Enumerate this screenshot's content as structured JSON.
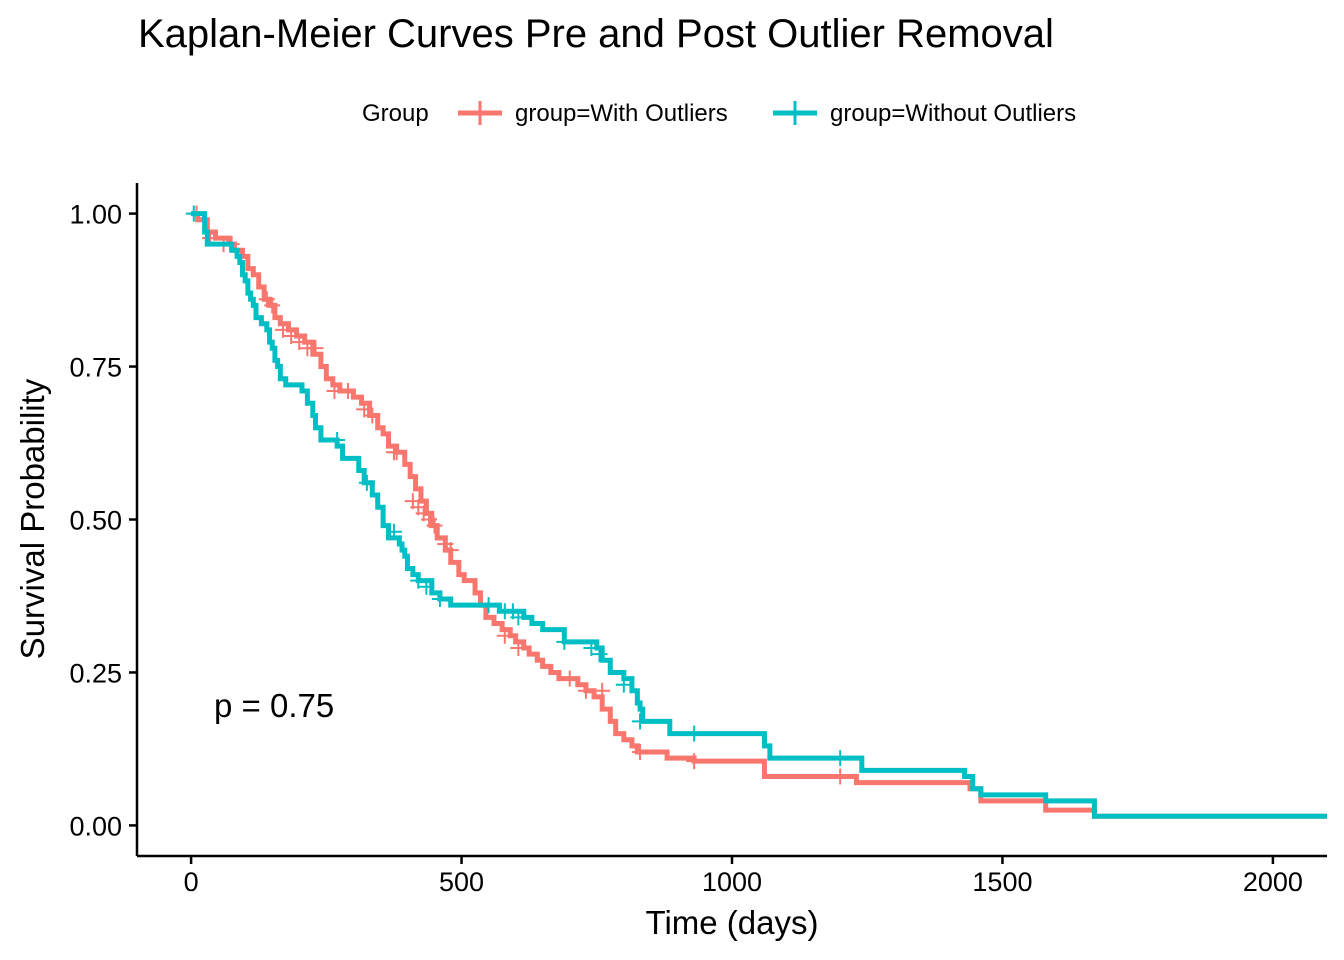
{
  "title": "Kaplan-Meier Curves Pre and Post Outlier Removal",
  "legend": {
    "title": "Group",
    "position": "top"
  },
  "annotation": "p = 0.75",
  "chart_data": {
    "type": "line",
    "title": "Kaplan-Meier Curves Pre and Post Outlier Removal",
    "xlabel": "Time (days)",
    "ylabel": "Survival Probability",
    "xlim": [
      -100,
      2100
    ],
    "ylim": [
      -0.05,
      1.05
    ],
    "x_ticks": [
      0,
      500,
      1000,
      1500,
      2000
    ],
    "x_tick_labels": [
      "0",
      "500",
      "1000",
      "1500",
      "2000"
    ],
    "y_ticks": [
      0,
      0.25,
      0.5,
      0.75,
      1
    ],
    "y_tick_labels": [
      "0.00",
      "0.25",
      "0.50",
      "0.75",
      "1.00"
    ],
    "grid": false,
    "step": true,
    "series": [
      {
        "name": "group=With Outliers",
        "color": "#F8766D",
        "points": [
          [
            0,
            1.0
          ],
          [
            12,
            0.99
          ],
          [
            30,
            0.97
          ],
          [
            45,
            0.96
          ],
          [
            70,
            0.95
          ],
          [
            80,
            0.94
          ],
          [
            95,
            0.93
          ],
          [
            105,
            0.91
          ],
          [
            115,
            0.9
          ],
          [
            125,
            0.88
          ],
          [
            135,
            0.86
          ],
          [
            145,
            0.85
          ],
          [
            155,
            0.83
          ],
          [
            165,
            0.82
          ],
          [
            180,
            0.81
          ],
          [
            195,
            0.8
          ],
          [
            210,
            0.79
          ],
          [
            225,
            0.77
          ],
          [
            240,
            0.75
          ],
          [
            250,
            0.73
          ],
          [
            262,
            0.72
          ],
          [
            275,
            0.71
          ],
          [
            300,
            0.7
          ],
          [
            315,
            0.69
          ],
          [
            330,
            0.67
          ],
          [
            345,
            0.65
          ],
          [
            355,
            0.64
          ],
          [
            365,
            0.62
          ],
          [
            380,
            0.61
          ],
          [
            395,
            0.59
          ],
          [
            405,
            0.57
          ],
          [
            415,
            0.55
          ],
          [
            425,
            0.53
          ],
          [
            435,
            0.51
          ],
          [
            445,
            0.49
          ],
          [
            455,
            0.47
          ],
          [
            470,
            0.45
          ],
          [
            480,
            0.43
          ],
          [
            495,
            0.41
          ],
          [
            505,
            0.4
          ],
          [
            525,
            0.38
          ],
          [
            535,
            0.36
          ],
          [
            545,
            0.34
          ],
          [
            560,
            0.33
          ],
          [
            575,
            0.32
          ],
          [
            590,
            0.31
          ],
          [
            600,
            0.3
          ],
          [
            615,
            0.29
          ],
          [
            625,
            0.28
          ],
          [
            640,
            0.27
          ],
          [
            650,
            0.26
          ],
          [
            665,
            0.25
          ],
          [
            680,
            0.24
          ],
          [
            715,
            0.23
          ],
          [
            730,
            0.22
          ],
          [
            745,
            0.21
          ],
          [
            760,
            0.19
          ],
          [
            775,
            0.17
          ],
          [
            785,
            0.15
          ],
          [
            800,
            0.14
          ],
          [
            815,
            0.13
          ],
          [
            825,
            0.12
          ],
          [
            880,
            0.11
          ],
          [
            930,
            0.105
          ],
          [
            1060,
            0.08
          ],
          [
            1230,
            0.07
          ],
          [
            1440,
            0.06
          ],
          [
            1460,
            0.04
          ],
          [
            1580,
            0.025
          ],
          [
            1670,
            0.015
          ],
          [
            2100,
            0.015
          ]
        ],
        "censored": [
          [
            10,
            1.0
          ],
          [
            35,
            0.96
          ],
          [
            60,
            0.95
          ],
          [
            75,
            0.95
          ],
          [
            140,
            0.86
          ],
          [
            150,
            0.85
          ],
          [
            170,
            0.81
          ],
          [
            185,
            0.8
          ],
          [
            200,
            0.79
          ],
          [
            215,
            0.78
          ],
          [
            230,
            0.78
          ],
          [
            265,
            0.71
          ],
          [
            290,
            0.71
          ],
          [
            320,
            0.68
          ],
          [
            335,
            0.67
          ],
          [
            375,
            0.61
          ],
          [
            380,
            0.61
          ],
          [
            410,
            0.53
          ],
          [
            420,
            0.52
          ],
          [
            430,
            0.51
          ],
          [
            440,
            0.5
          ],
          [
            450,
            0.49
          ],
          [
            470,
            0.46
          ],
          [
            480,
            0.45
          ],
          [
            580,
            0.31
          ],
          [
            605,
            0.29
          ],
          [
            700,
            0.24
          ],
          [
            730,
            0.22
          ],
          [
            760,
            0.22
          ],
          [
            830,
            0.12
          ],
          [
            930,
            0.105
          ],
          [
            1200,
            0.08
          ]
        ]
      },
      {
        "name": "group=Without Outliers",
        "color": "#00BFC4",
        "points": [
          [
            0,
            1.0
          ],
          [
            25,
            0.97
          ],
          [
            30,
            0.95
          ],
          [
            75,
            0.94
          ],
          [
            85,
            0.93
          ],
          [
            90,
            0.92
          ],
          [
            95,
            0.9
          ],
          [
            100,
            0.89
          ],
          [
            105,
            0.87
          ],
          [
            110,
            0.86
          ],
          [
            115,
            0.85
          ],
          [
            120,
            0.83
          ],
          [
            130,
            0.82
          ],
          [
            140,
            0.81
          ],
          [
            145,
            0.79
          ],
          [
            150,
            0.78
          ],
          [
            155,
            0.76
          ],
          [
            160,
            0.75
          ],
          [
            165,
            0.73
          ],
          [
            175,
            0.72
          ],
          [
            205,
            0.71
          ],
          [
            215,
            0.69
          ],
          [
            225,
            0.67
          ],
          [
            230,
            0.65
          ],
          [
            240,
            0.63
          ],
          [
            270,
            0.62
          ],
          [
            280,
            0.6
          ],
          [
            310,
            0.58
          ],
          [
            320,
            0.56
          ],
          [
            335,
            0.54
          ],
          [
            345,
            0.52
          ],
          [
            355,
            0.49
          ],
          [
            365,
            0.47
          ],
          [
            385,
            0.46
          ],
          [
            390,
            0.45
          ],
          [
            395,
            0.44
          ],
          [
            400,
            0.42
          ],
          [
            410,
            0.41
          ],
          [
            420,
            0.4
          ],
          [
            445,
            0.38
          ],
          [
            460,
            0.37
          ],
          [
            480,
            0.36
          ],
          [
            570,
            0.35
          ],
          [
            615,
            0.34
          ],
          [
            630,
            0.33
          ],
          [
            650,
            0.32
          ],
          [
            690,
            0.3
          ],
          [
            750,
            0.29
          ],
          [
            760,
            0.27
          ],
          [
            775,
            0.25
          ],
          [
            800,
            0.24
          ],
          [
            815,
            0.22
          ],
          [
            825,
            0.2
          ],
          [
            830,
            0.19
          ],
          [
            835,
            0.17
          ],
          [
            885,
            0.15
          ],
          [
            1060,
            0.13
          ],
          [
            1070,
            0.11
          ],
          [
            1240,
            0.09
          ],
          [
            1430,
            0.08
          ],
          [
            1445,
            0.06
          ],
          [
            1460,
            0.05
          ],
          [
            1580,
            0.04
          ],
          [
            1670,
            0.015
          ],
          [
            2100,
            0.015
          ]
        ],
        "censored": [
          [
            5,
            1.0
          ],
          [
            270,
            0.63
          ],
          [
            325,
            0.56
          ],
          [
            375,
            0.48
          ],
          [
            420,
            0.4
          ],
          [
            435,
            0.39
          ],
          [
            460,
            0.37
          ],
          [
            550,
            0.36
          ],
          [
            580,
            0.35
          ],
          [
            595,
            0.35
          ],
          [
            605,
            0.34
          ],
          [
            690,
            0.3
          ],
          [
            740,
            0.29
          ],
          [
            755,
            0.28
          ],
          [
            800,
            0.23
          ],
          [
            830,
            0.17
          ],
          [
            930,
            0.15
          ],
          [
            1200,
            0.11
          ]
        ]
      }
    ]
  }
}
